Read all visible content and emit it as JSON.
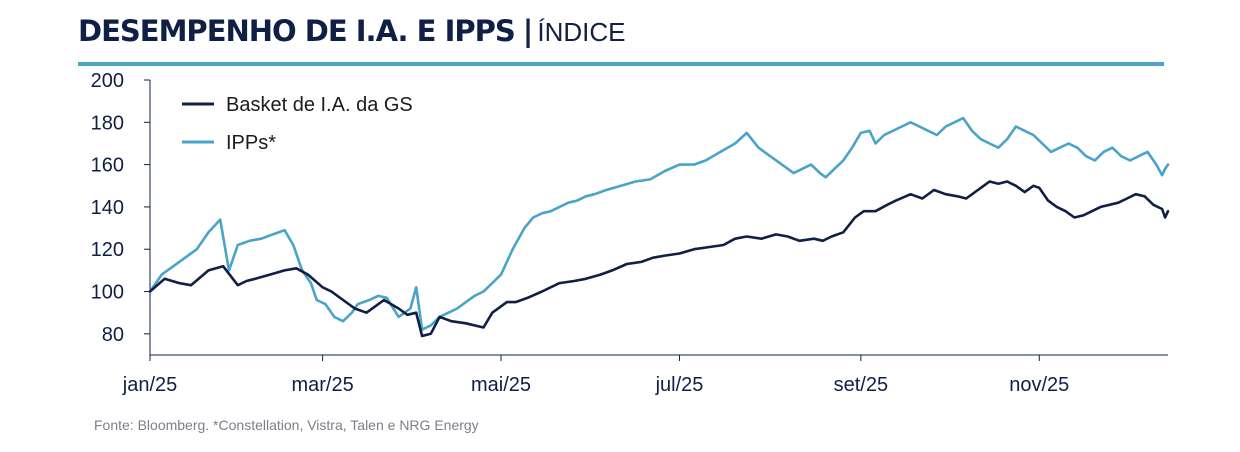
{
  "title": {
    "main": "DESEMPENHO DE I.A. E IPPS",
    "separator": "|",
    "subtitle": "ÍNDICE"
  },
  "colors": {
    "navy": "#0f1f45",
    "light_blue": "#4aa3c8",
    "rule": "#4aa3c8"
  },
  "source_note": "Fonte: Bloomberg.  *Constellation, Vistra, Talen e NRG Energy",
  "chart_data": {
    "type": "line",
    "title": "DESEMPENHO DE I.A. E IPPS | ÍNDICE",
    "xlabel": "",
    "ylabel": "",
    "ylim": [
      70,
      200
    ],
    "yticks": [
      80,
      100,
      120,
      140,
      160,
      180,
      200
    ],
    "xlim": [
      0,
      348
    ],
    "xticks": [
      {
        "pos": 0,
        "label": "jan/25"
      },
      {
        "pos": 59,
        "label": "mar/25"
      },
      {
        "pos": 120,
        "label": "mai/25"
      },
      {
        "pos": 181,
        "label": "jul/25"
      },
      {
        "pos": 243,
        "label": "set/25"
      },
      {
        "pos": 304,
        "label": "nov/25"
      }
    ],
    "legend_position": "top-left",
    "series": [
      {
        "name": "Basket de I.A. da GS",
        "color": "#0f1f45",
        "x": [
          0,
          5,
          10,
          14,
          20,
          25,
          30,
          33,
          36,
          41,
          46,
          50,
          54,
          59,
          62,
          66,
          70,
          74,
          80,
          85,
          88,
          91,
          93,
          96,
          99,
          103,
          108,
          114,
          117,
          122,
          125,
          129,
          134,
          140,
          145,
          149,
          154,
          158,
          163,
          168,
          172,
          176,
          181,
          186,
          191,
          196,
          200,
          204,
          209,
          214,
          218,
          222,
          227,
          230,
          233,
          237,
          241,
          244,
          248,
          252,
          255,
          260,
          264,
          268,
          272,
          276,
          279,
          283,
          285,
          287,
          290,
          293,
          296,
          299,
          302,
          304,
          307,
          310,
          313,
          316,
          319,
          322,
          325,
          328,
          331,
          334,
          337,
          340,
          343,
          346,
          347,
          348
        ],
        "values": [
          100,
          106,
          104,
          103,
          110,
          112,
          103,
          105,
          106,
          108,
          110,
          111,
          108,
          102,
          100,
          96,
          92,
          90,
          96,
          92,
          89,
          90,
          79,
          80,
          88,
          86,
          85,
          83,
          90,
          95,
          95,
          97,
          100,
          104,
          105,
          106,
          108,
          110,
          113,
          114,
          116,
          117,
          118,
          120,
          121,
          122,
          125,
          126,
          125,
          127,
          126,
          124,
          125,
          124,
          126,
          128,
          135,
          138,
          138,
          141,
          143,
          146,
          144,
          148,
          146,
          145,
          144,
          148,
          150,
          152,
          151,
          152,
          150,
          147,
          150,
          149,
          143,
          140,
          138,
          135,
          136,
          138,
          140,
          141,
          142,
          144,
          146,
          145,
          141,
          139,
          135,
          138
        ]
      },
      {
        "name": "IPPs*",
        "color": "#4aa3c8",
        "x": [
          0,
          4,
          8,
          12,
          16,
          20,
          24,
          27,
          30,
          34,
          38,
          42,
          46,
          49,
          52,
          55,
          57,
          60,
          63,
          66,
          69,
          71,
          75,
          78,
          81,
          85,
          89,
          91,
          93,
          96,
          99,
          102,
          105,
          108,
          111,
          114,
          117,
          120,
          124,
          128,
          131,
          134,
          137,
          140,
          143,
          146,
          149,
          152,
          156,
          161,
          166,
          171,
          176,
          181,
          186,
          190,
          195,
          200,
          204,
          208,
          212,
          216,
          220,
          223,
          226,
          229,
          231,
          234,
          237,
          240,
          243,
          246,
          248,
          251,
          254,
          257,
          260,
          263,
          266,
          269,
          272,
          275,
          278,
          281,
          284,
          287,
          290,
          293,
          296,
          299,
          302,
          305,
          308,
          311,
          314,
          317,
          320,
          323,
          326,
          329,
          332,
          335,
          338,
          341,
          344,
          346,
          347,
          348
        ],
        "values": [
          100,
          108,
          112,
          116,
          120,
          128,
          134,
          110,
          122,
          124,
          125,
          127,
          129,
          122,
          110,
          104,
          96,
          94,
          88,
          86,
          90,
          94,
          96,
          98,
          97,
          88,
          92,
          102,
          82,
          84,
          88,
          90,
          92,
          95,
          98,
          100,
          104,
          108,
          120,
          130,
          135,
          137,
          138,
          140,
          142,
          143,
          145,
          146,
          148,
          150,
          152,
          153,
          157,
          160,
          160,
          162,
          166,
          170,
          175,
          168,
          164,
          160,
          156,
          158,
          160,
          156,
          154,
          158,
          162,
          168,
          175,
          176,
          170,
          174,
          176,
          178,
          180,
          178,
          176,
          174,
          178,
          180,
          182,
          176,
          172,
          170,
          168,
          172,
          178,
          176,
          174,
          170,
          166,
          168,
          170,
          168,
          164,
          162,
          166,
          168,
          164,
          162,
          164,
          166,
          160,
          155,
          158,
          160
        ]
      }
    ]
  }
}
